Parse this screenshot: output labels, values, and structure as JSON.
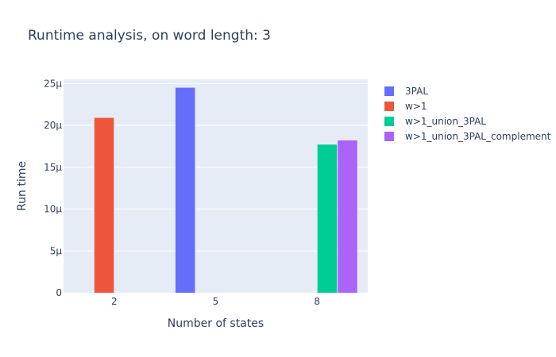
{
  "chart_data": {
    "type": "bar",
    "title": "Runtime analysis, on word length: 3",
    "xlabel": "Number of states",
    "ylabel": "Run time",
    "categories": [
      "2",
      "5",
      "8"
    ],
    "ylim": [
      0,
      25.5
    ],
    "yticks": [
      {
        "value": 0,
        "label": "0"
      },
      {
        "value": 5,
        "label": "5μ"
      },
      {
        "value": 10,
        "label": "10μ"
      },
      {
        "value": 15,
        "label": "15μ"
      },
      {
        "value": 20,
        "label": "20μ"
      },
      {
        "value": 25,
        "label": "25μ"
      }
    ],
    "unit_note": "μ = microseconds (values in μs)",
    "grid": true,
    "legend_position": "right",
    "series": [
      {
        "name": "3PAL",
        "color": "#636efa",
        "values": [
          null,
          24.5,
          null
        ]
      },
      {
        "name": "w>1",
        "color": "#ef553b",
        "values": [
          20.9,
          null,
          null
        ]
      },
      {
        "name": "w>1_union_3PAL",
        "color": "#00cc96",
        "values": [
          null,
          null,
          17.7
        ]
      },
      {
        "name": "w>1_union_3PAL_complement",
        "color": "#ab63fa",
        "values": [
          null,
          null,
          18.2
        ]
      }
    ]
  }
}
